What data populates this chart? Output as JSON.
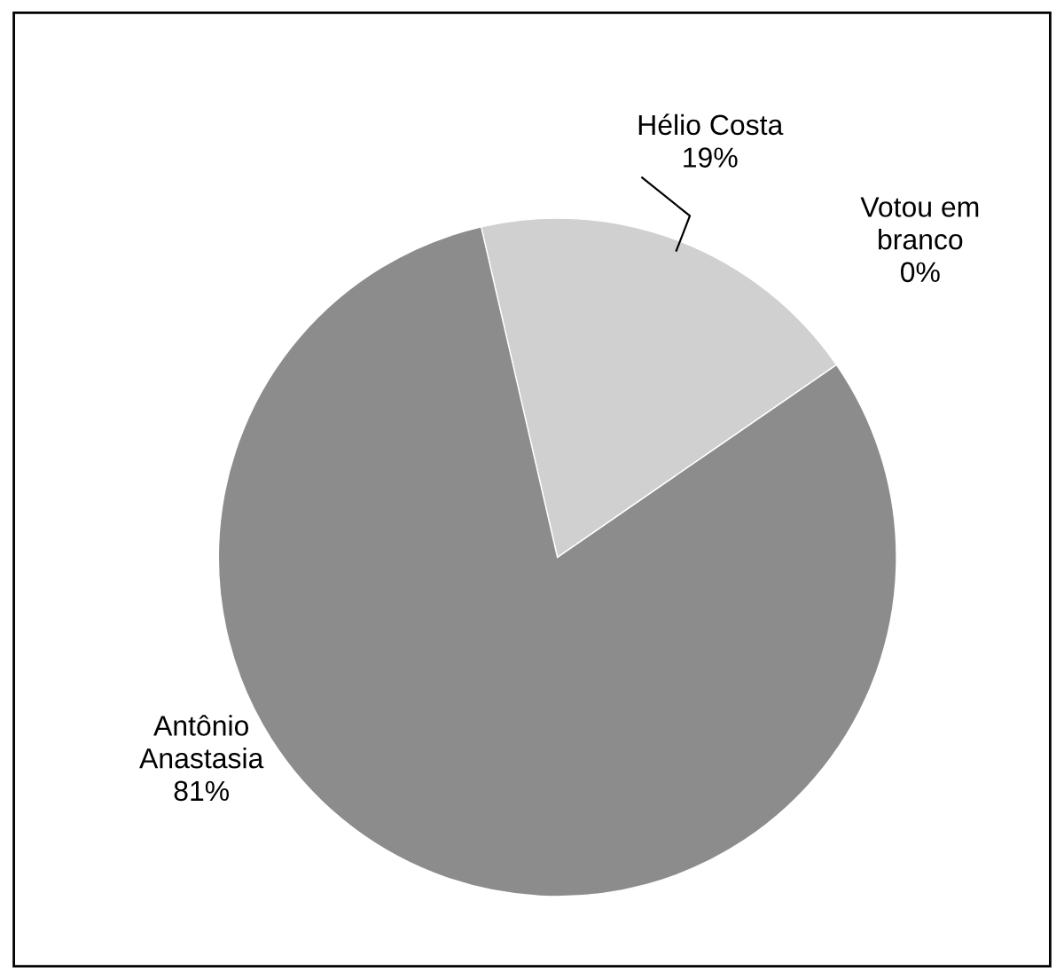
{
  "chart_data": {
    "type": "pie",
    "categories": [
      "Hélio Costa",
      "Votou em branco",
      "Antônio Anastasia"
    ],
    "values": [
      19,
      0,
      81
    ],
    "colors": [
      "#d0d0d0",
      "#404040",
      "#8c8c8c"
    ],
    "value_labels": [
      "19%",
      "0%",
      "81%"
    ]
  }
}
